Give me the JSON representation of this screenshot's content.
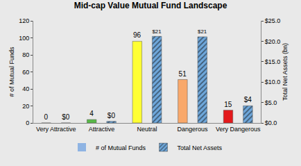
{
  "chart_data": {
    "type": "bar",
    "title": "Mid-cap Value Mutual Fund Landscape",
    "categories": [
      "Very Attractive",
      "Attractive",
      "Neutral",
      "Dangerous",
      "Very Dangerous"
    ],
    "series": [
      {
        "name": "# of Mutual Funds",
        "color": "#8fb4e3",
        "colors": [
          "#1f8f3a",
          "#58b947",
          "#ffff33",
          "#f9a86a",
          "#e3191c"
        ],
        "values": [
          0,
          4,
          96,
          51,
          15
        ]
      },
      {
        "name": "Total Net Assets",
        "color": "#6fa8dc",
        "marker": "hatched",
        "axis": "y2",
        "values": [
          0,
          0.4,
          21.2,
          21.1,
          4.2
        ],
        "value_labels": [
          "$0",
          "$0",
          "$21",
          "$21",
          "$4"
        ]
      }
    ],
    "ylabel": "# of Mutual Funds",
    "y2label": "Total Net Assets (bn)",
    "ylim": [
      0,
      120
    ],
    "yticks": [
      0,
      20,
      40,
      60,
      80,
      100,
      120
    ],
    "y2lim": [
      0,
      25
    ],
    "y2ticks": [
      {
        "value": 0,
        "label": "$0.0"
      },
      {
        "value": 5,
        "label": "$5.0"
      },
      {
        "value": 10,
        "label": "$10.0"
      },
      {
        "value": 15,
        "label": "$15.0"
      },
      {
        "value": 20,
        "label": "$20.0"
      },
      {
        "value": 25,
        "label": "$25.0"
      }
    ],
    "data_labels": true,
    "legend": "bottom",
    "grid": false
  }
}
